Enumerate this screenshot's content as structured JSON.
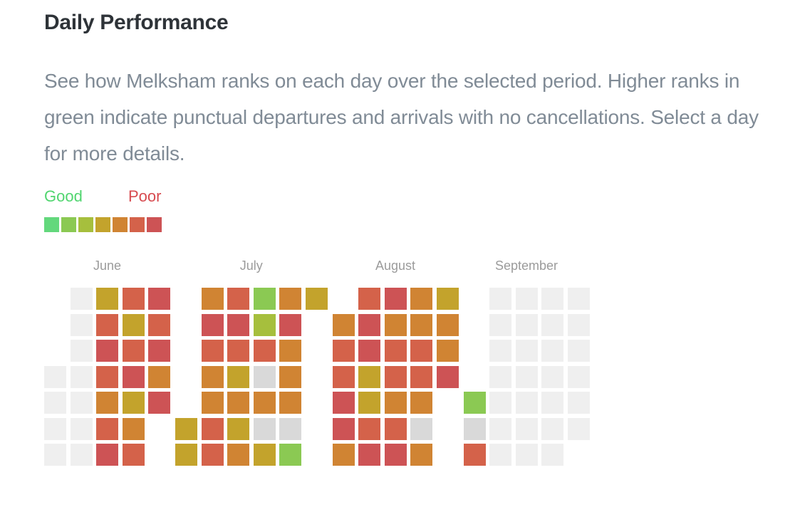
{
  "page": {
    "title": "Daily Performance",
    "description": "See how Melksham ranks on each day over the selected period. Higher ranks in green indicate punctual departures and arrivals with no cancellations. Select a day for more details."
  },
  "legend": {
    "good_label": "Good",
    "poor_label": "Poor",
    "good_color": "#50d56f",
    "poor_color": "#d74b50"
  },
  "palette": {
    "g1": "#63d87c",
    "g2": "#8bc953",
    "g3": "#a6bf3d",
    "g4": "#c3a32c",
    "g5": "#d08433",
    "g6": "#d4624a",
    "g7": "#cd5355",
    "off": "#efefef",
    "na": "#d9d9d9",
    "empty": "transparent"
  },
  "chart_data": {
    "type": "heatmap",
    "title": "Daily Performance",
    "layout": "columns are weeks (7 day rows per column), one block per month, no axis labels",
    "legend_scale_good_to_poor": [
      "#63d87c",
      "#8bc953",
      "#a6bf3d",
      "#c3a32c",
      "#d08433",
      "#d4624a",
      "#cd5355"
    ],
    "value_key": "g1=best(green) .. g7=worst(red), off=light gray placeholder, na=gray no-data, empty=no cell",
    "months": [
      {
        "label": "June",
        "weeks": [
          [
            "empty",
            "empty",
            "empty",
            "off",
            "off",
            "off",
            "off"
          ],
          [
            "off",
            "off",
            "off",
            "off",
            "off",
            "off",
            "off"
          ],
          [
            "g4",
            "g6",
            "g7",
            "g6",
            "g5",
            "g6",
            "g7"
          ],
          [
            "g6",
            "g4",
            "g6",
            "g7",
            "g4",
            "g5",
            "g6"
          ],
          [
            "g7",
            "g6",
            "g7",
            "g5",
            "g7",
            "empty",
            "empty"
          ]
        ]
      },
      {
        "label": "July",
        "weeks": [
          [
            "empty",
            "empty",
            "empty",
            "empty",
            "empty",
            "g4",
            "g4"
          ],
          [
            "g5",
            "g7",
            "g6",
            "g5",
            "g5",
            "g6",
            "g6"
          ],
          [
            "g6",
            "g7",
            "g6",
            "g4",
            "g5",
            "g4",
            "g5"
          ],
          [
            "g2",
            "g3",
            "g6",
            "na",
            "g5",
            "na",
            "g4"
          ],
          [
            "g5",
            "g7",
            "g5",
            "g5",
            "g5",
            "na",
            "g2"
          ],
          [
            "g4",
            "empty",
            "empty",
            "empty",
            "empty",
            "empty",
            "empty"
          ]
        ]
      },
      {
        "label": "August",
        "weeks": [
          [
            "empty",
            "g5",
            "g6",
            "g6",
            "g7",
            "g7",
            "g5"
          ],
          [
            "g6",
            "g7",
            "g7",
            "g4",
            "g4",
            "g6",
            "g7"
          ],
          [
            "g7",
            "g5",
            "g6",
            "g6",
            "g5",
            "g6",
            "g7"
          ],
          [
            "g5",
            "g5",
            "g6",
            "g6",
            "g5",
            "na",
            "g5"
          ],
          [
            "g4",
            "g5",
            "g5",
            "g7",
            "empty",
            "empty",
            "empty"
          ]
        ]
      },
      {
        "label": "September",
        "weeks": [
          [
            "empty",
            "empty",
            "empty",
            "empty",
            "g2",
            "na",
            "g6"
          ],
          [
            "off",
            "off",
            "off",
            "off",
            "off",
            "off",
            "off"
          ],
          [
            "off",
            "off",
            "off",
            "off",
            "off",
            "off",
            "off"
          ],
          [
            "off",
            "off",
            "off",
            "off",
            "off",
            "off",
            "off"
          ],
          [
            "off",
            "off",
            "off",
            "off",
            "off",
            "off",
            "empty"
          ]
        ]
      }
    ]
  }
}
